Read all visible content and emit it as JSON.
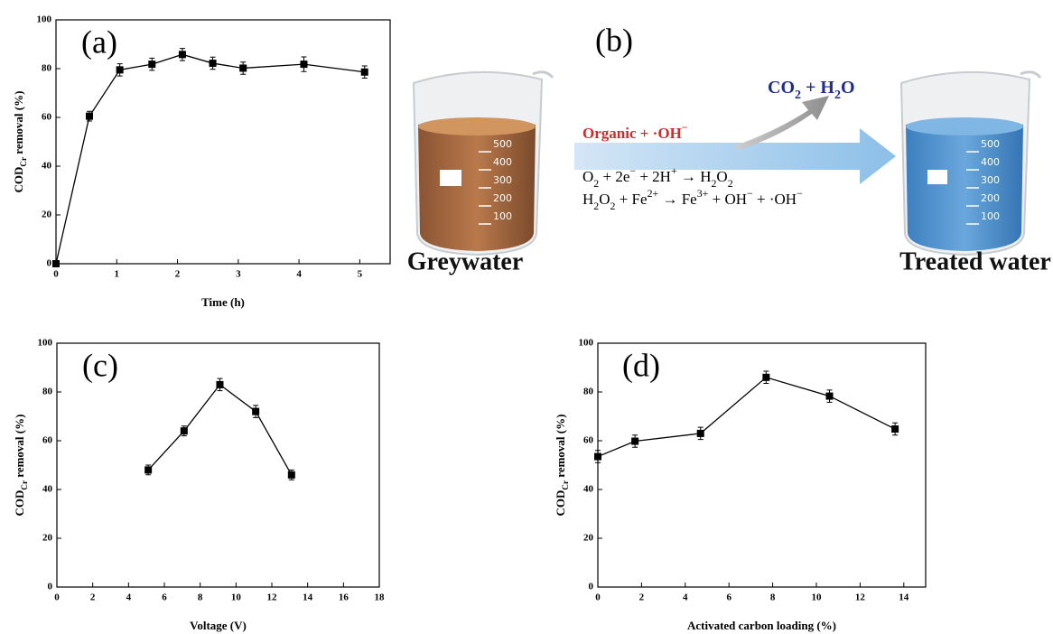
{
  "chart_data": [
    {
      "type": "line",
      "label": "(a)",
      "xlabel": "Time (h)",
      "ylabel": [
        "COD",
        "Cr",
        " removal (%)"
      ],
      "x": [
        0,
        0.55,
        1.05,
        1.58,
        2.08,
        2.58,
        3.08,
        4.08,
        5.08
      ],
      "values": [
        0,
        60.5,
        79.5,
        81.8,
        85.8,
        82.2,
        80.2,
        81.8,
        78.6
      ],
      "errors": [
        0,
        2,
        2.5,
        2.5,
        2.5,
        2.5,
        2.5,
        3,
        2.5
      ],
      "color": "#000000",
      "xlim": [
        0,
        5.5
      ],
      "xticks": [
        0,
        1,
        2,
        3,
        4,
        5
      ],
      "ylim": [
        0,
        100
      ],
      "yticks": [
        0,
        20,
        40,
        60,
        80,
        100
      ]
    },
    {
      "type": "line",
      "label": "(c)",
      "xlabel": "Voltage (V)",
      "ylabel": [
        "COD",
        "Cr",
        " removal (%)"
      ],
      "x": [
        5.1,
        7.1,
        9.1,
        11.1,
        13.1
      ],
      "values": [
        48,
        64,
        83,
        72,
        46
      ],
      "errors": [
        2,
        2,
        2.5,
        2.5,
        2
      ],
      "color": "#000000",
      "xlim": [
        0,
        18
      ],
      "xticks": [
        0,
        2,
        4,
        6,
        8,
        10,
        12,
        14,
        16,
        18
      ],
      "ylim": [
        0,
        100
      ],
      "yticks": [
        0,
        20,
        40,
        60,
        80,
        100
      ]
    },
    {
      "type": "line",
      "label": "(d)",
      "xlabel": "Activated carbon loading (%)",
      "ylabel": [
        "COD",
        "Cr",
        " removal (%)"
      ],
      "x": [
        0,
        1.7,
        4.7,
        7.7,
        10.6,
        13.6
      ],
      "values": [
        53.5,
        59.8,
        63,
        86,
        78.3,
        64.8
      ],
      "errors": [
        2.5,
        2.5,
        2.5,
        2.5,
        2.5,
        2.5
      ],
      "color": "#000000",
      "xlim": [
        0,
        15
      ],
      "xticks": [
        0,
        2,
        4,
        6,
        8,
        10,
        12,
        14
      ],
      "ylim": [
        0,
        100
      ],
      "yticks": [
        0,
        20,
        40,
        60,
        80,
        100
      ]
    }
  ],
  "diagram": {
    "label": "(b)",
    "reactant": [
      "Organic + ·OH",
      "−"
    ],
    "products": [
      "CO",
      "2",
      " + H",
      "2",
      "O"
    ],
    "equation1": [
      "O",
      "2",
      " + 2e",
      "−",
      " + 2H",
      "+",
      " → H",
      "2",
      "O",
      "2"
    ],
    "equation2": [
      "H",
      "2",
      "O",
      "2",
      " + Fe",
      "2+",
      " → Fe",
      "3+",
      " + OH",
      "−",
      " + ·OH",
      "−"
    ],
    "source": "Greywater",
    "result": "Treated water",
    "beaker_scale": [
      "500",
      "400",
      "300",
      "200",
      "100"
    ]
  }
}
